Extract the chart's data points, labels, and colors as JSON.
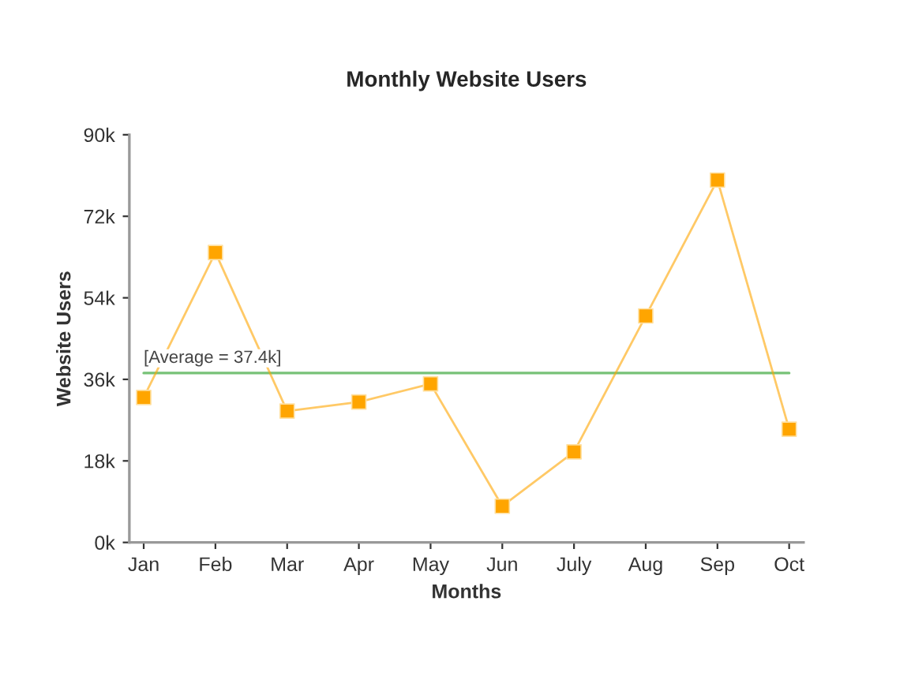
{
  "chart_data": {
    "type": "line",
    "title": "Monthly Website Users",
    "xlabel": "Months",
    "ylabel": "Website Users",
    "categories": [
      "Jan",
      "Feb",
      "Mar",
      "Apr",
      "May",
      "Jun",
      "July",
      "Aug",
      "Sep",
      "Oct"
    ],
    "series": [
      {
        "color": "#ffa500",
        "values": [
          32000,
          64000,
          29000,
          31000,
          35000,
          8000,
          20000,
          50000,
          80000,
          25000
        ]
      }
    ],
    "ylim": [
      0,
      90000
    ],
    "yticks": [
      {
        "value": 0,
        "label": "0k"
      },
      {
        "value": 18000,
        "label": "18k"
      },
      {
        "value": 36000,
        "label": "36k"
      },
      {
        "value": 54000,
        "label": "54k"
      },
      {
        "value": 72000,
        "label": "72k"
      },
      {
        "value": 90000,
        "label": "90k"
      }
    ],
    "ref_lines": [
      {
        "axis": "y",
        "value": 37400,
        "label": "[Average = 37.4k]",
        "color": "#77c277"
      }
    ],
    "marker": "square",
    "grid": false
  }
}
